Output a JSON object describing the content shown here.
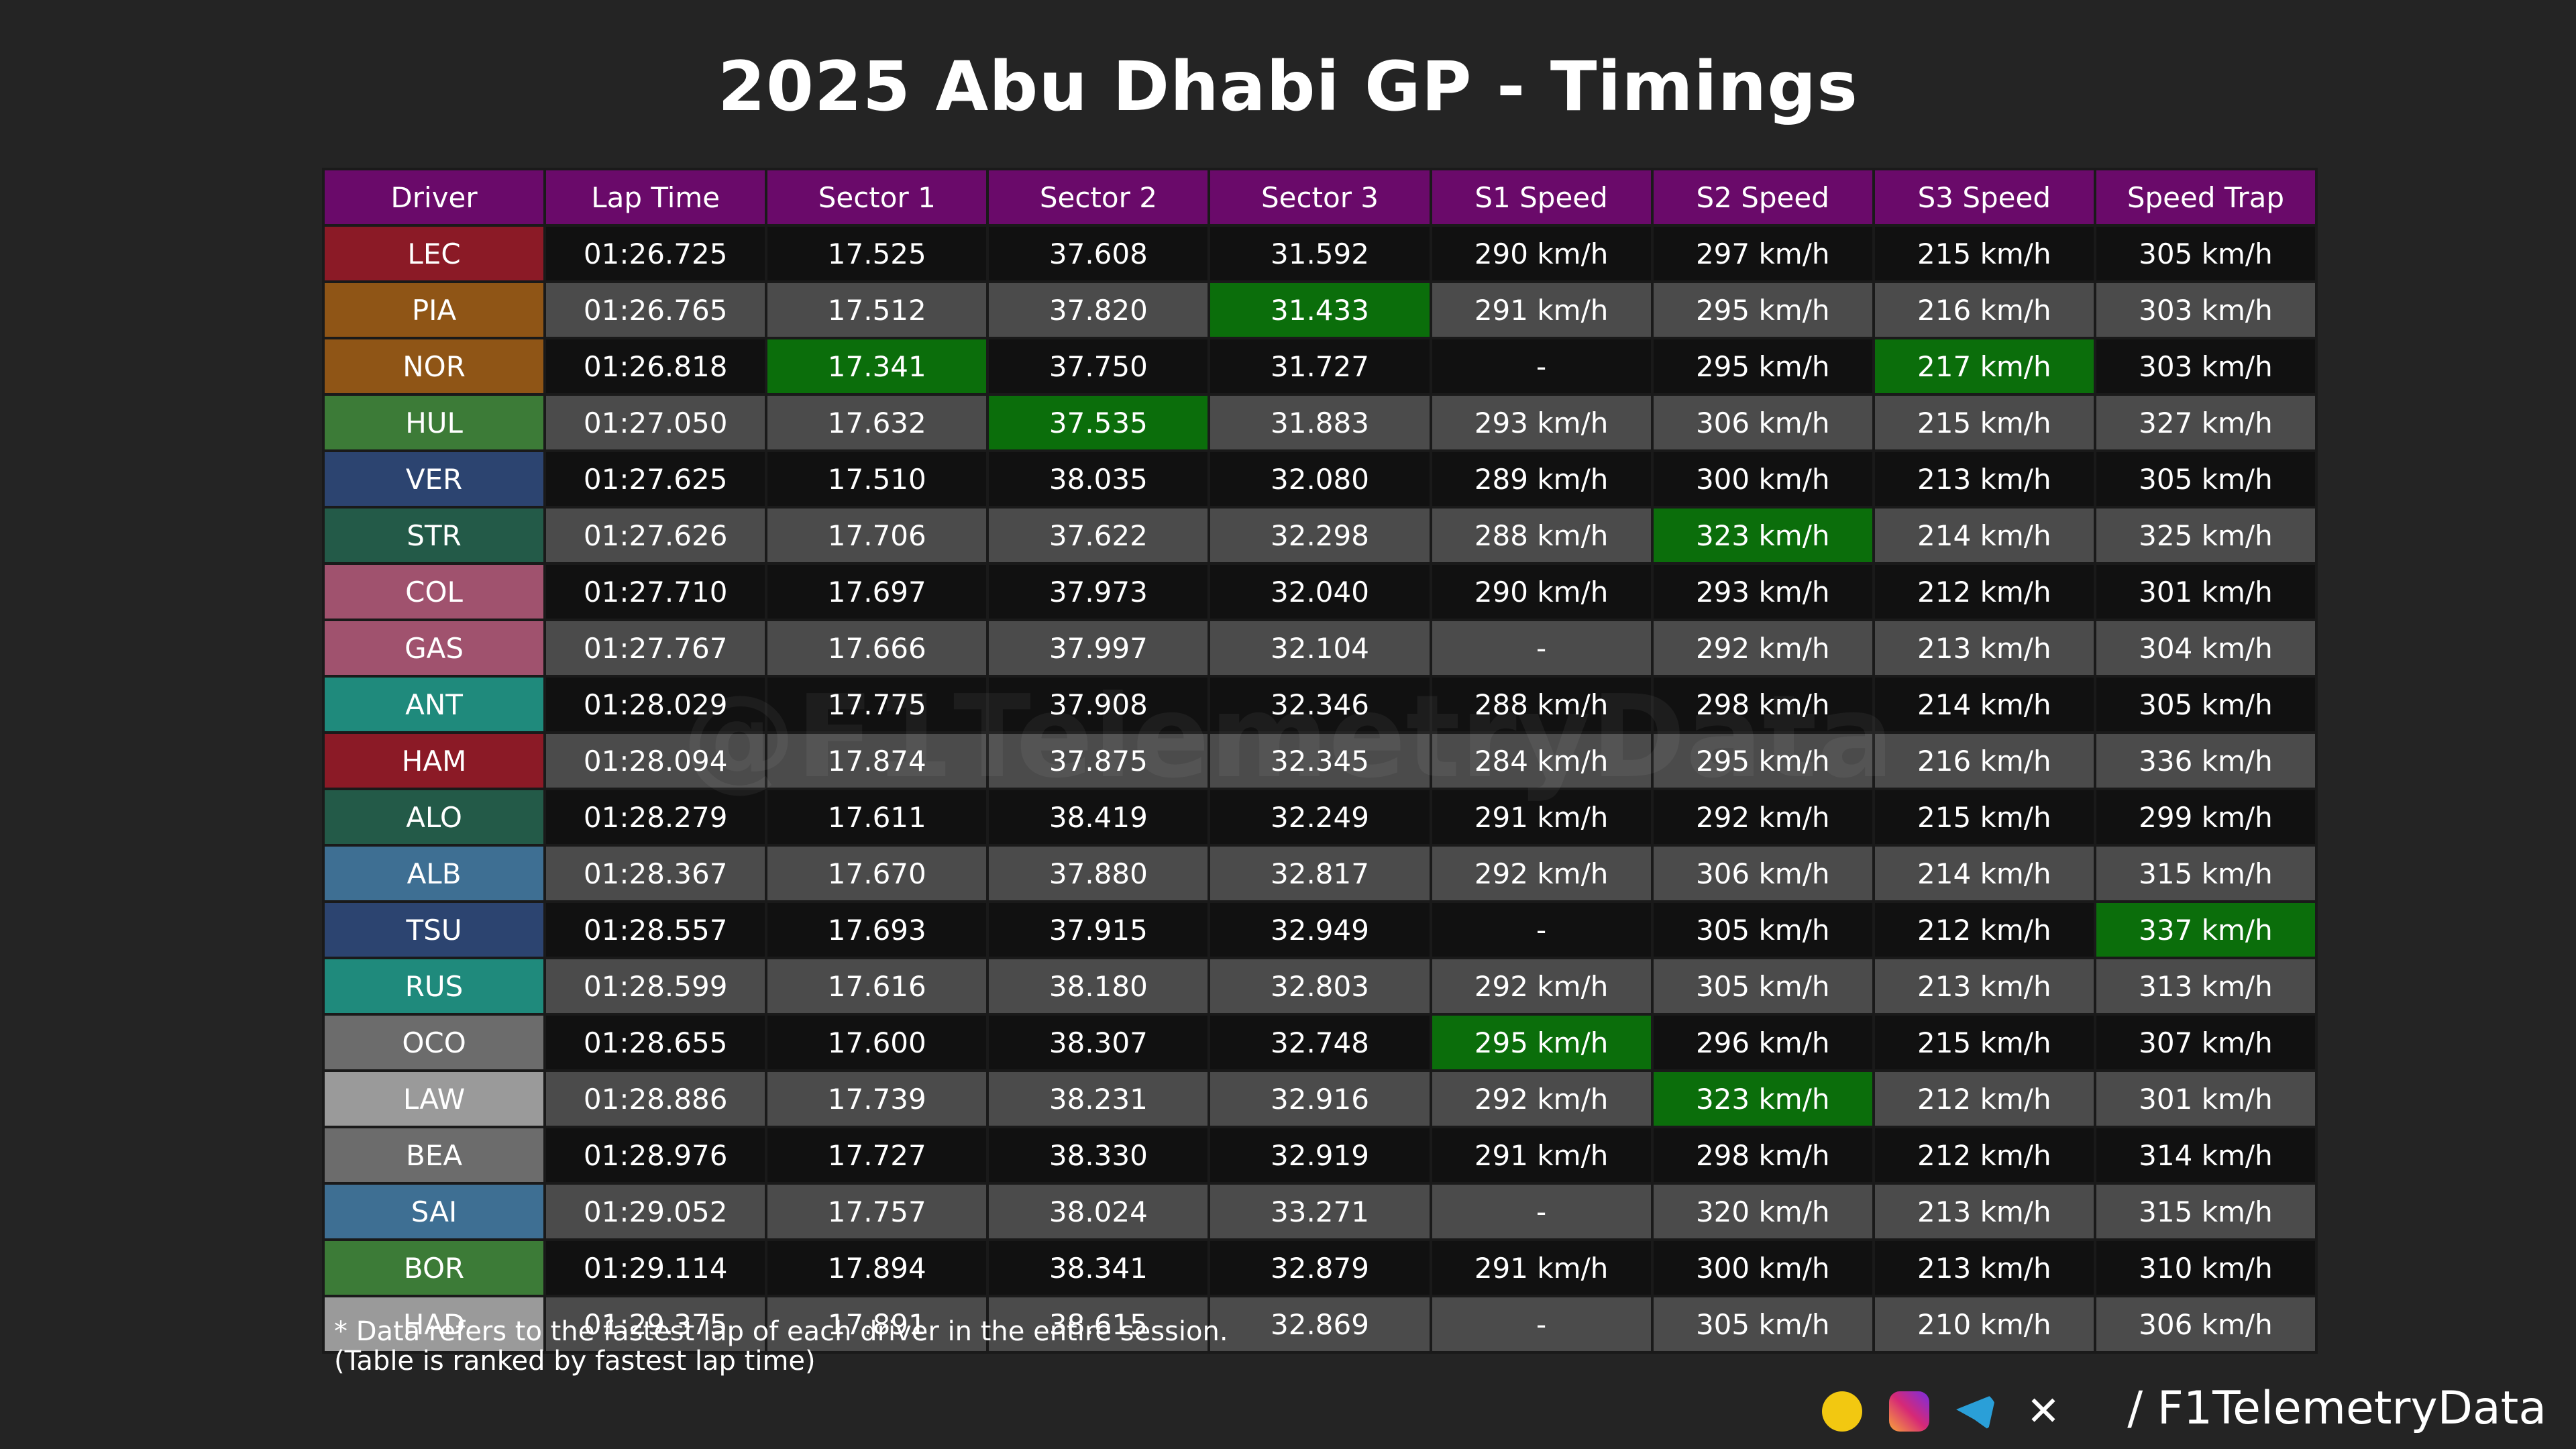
{
  "title": "2025 Abu Dhabi GP - Timings",
  "table": {
    "header": [
      "Driver",
      "Lap Time",
      "Sector 1",
      "Sector 2",
      "Sector 3",
      "S1 Speed",
      "S2 Speed",
      "S3 Speed",
      "Speed Trap"
    ],
    "rows": [
      [
        "LEC",
        "01:26.725",
        "17.525",
        "37.608",
        "31.592",
        "290 km/h",
        "297 km/h",
        "215 km/h",
        "305 km/h"
      ],
      [
        "PIA",
        "01:26.765",
        "17.512",
        "37.820",
        "31.433",
        "291 km/h",
        "295 km/h",
        "216 km/h",
        "303 km/h"
      ],
      [
        "NOR",
        "01:26.818",
        "17.341",
        "37.750",
        "31.727",
        "-",
        "295 km/h",
        "217 km/h",
        "303 km/h"
      ],
      [
        "HUL",
        "01:27.050",
        "17.632",
        "37.535",
        "31.883",
        "293 km/h",
        "306 km/h",
        "215 km/h",
        "327 km/h"
      ],
      [
        "VER",
        "01:27.625",
        "17.510",
        "38.035",
        "32.080",
        "289 km/h",
        "300 km/h",
        "213 km/h",
        "305 km/h"
      ],
      [
        "STR",
        "01:27.626",
        "17.706",
        "37.622",
        "32.298",
        "288 km/h",
        "323 km/h",
        "214 km/h",
        "325 km/h"
      ],
      [
        "COL",
        "01:27.710",
        "17.697",
        "37.973",
        "32.040",
        "290 km/h",
        "293 km/h",
        "212 km/h",
        "301 km/h"
      ],
      [
        "GAS",
        "01:27.767",
        "17.666",
        "37.997",
        "32.104",
        "-",
        "292 km/h",
        "213 km/h",
        "304 km/h"
      ],
      [
        "ANT",
        "01:28.029",
        "17.775",
        "37.908",
        "32.346",
        "288 km/h",
        "298 km/h",
        "214 km/h",
        "305 km/h"
      ],
      [
        "HAM",
        "01:28.094",
        "17.874",
        "37.875",
        "32.345",
        "284 km/h",
        "295 km/h",
        "216 km/h",
        "336 km/h"
      ],
      [
        "ALO",
        "01:28.279",
        "17.611",
        "38.419",
        "32.249",
        "291 km/h",
        "292 km/h",
        "215 km/h",
        "299 km/h"
      ],
      [
        "ALB",
        "01:28.367",
        "17.670",
        "37.880",
        "32.817",
        "292 km/h",
        "306 km/h",
        "214 km/h",
        "315 km/h"
      ],
      [
        "TSU",
        "01:28.557",
        "17.693",
        "37.915",
        "32.949",
        "-",
        "305 km/h",
        "212 km/h",
        "337 km/h"
      ],
      [
        "RUS",
        "01:28.599",
        "17.616",
        "38.180",
        "32.803",
        "292 km/h",
        "305 km/h",
        "213 km/h",
        "313 km/h"
      ],
      [
        "OCO",
        "01:28.655",
        "17.600",
        "38.307",
        "32.748",
        "295 km/h",
        "296 km/h",
        "215 km/h",
        "307 km/h"
      ],
      [
        "LAW",
        "01:28.886",
        "17.739",
        "38.231",
        "32.916",
        "292 km/h",
        "323 km/h",
        "212 km/h",
        "301 km/h"
      ],
      [
        "BEA",
        "01:28.976",
        "17.727",
        "38.330",
        "32.919",
        "291 km/h",
        "298 km/h",
        "212 km/h",
        "314 km/h"
      ],
      [
        "SAI",
        "01:29.052",
        "17.757",
        "38.024",
        "33.271",
        "-",
        "320 km/h",
        "213 km/h",
        "315 km/h"
      ],
      [
        "BOR",
        "01:29.114",
        "17.894",
        "38.341",
        "32.879",
        "291 km/h",
        "300 km/h",
        "213 km/h",
        "310 km/h"
      ],
      [
        "HAD",
        "01:29.375",
        "17.891",
        "38.615",
        "32.869",
        "-",
        "305 km/h",
        "210 km/h",
        "306 km/h"
      ]
    ],
    "driver_colors": [
      "#8b1a26",
      "#8f5516",
      "#8f5516",
      "#3c7b37",
      "#2c4470",
      "#235a48",
      "#a0526e",
      "#a0526e",
      "#1f8a7c",
      "#8b1a26",
      "#235a48",
      "#3e6f93",
      "#2c4470",
      "#1f8a7c",
      "#6c6c6c",
      "#9a9a9a",
      "#6c6c6c",
      "#3e6f93",
      "#3c7b37",
      "#9a9a9a"
    ],
    "fastest": [
      [
        1,
        4
      ],
      [
        2,
        2
      ],
      [
        2,
        7
      ],
      [
        3,
        3
      ],
      [
        5,
        6
      ],
      [
        12,
        8
      ],
      [
        14,
        5
      ],
      [
        15,
        6
      ]
    ]
  },
  "watermark": "@F1TelemetryData",
  "notes": [
    "* Data refers to the fastest lap of each driver in the entire session.",
    "(Table is ranked by fastest lap time)"
  ],
  "handle": "/ F1TelemetryData"
}
